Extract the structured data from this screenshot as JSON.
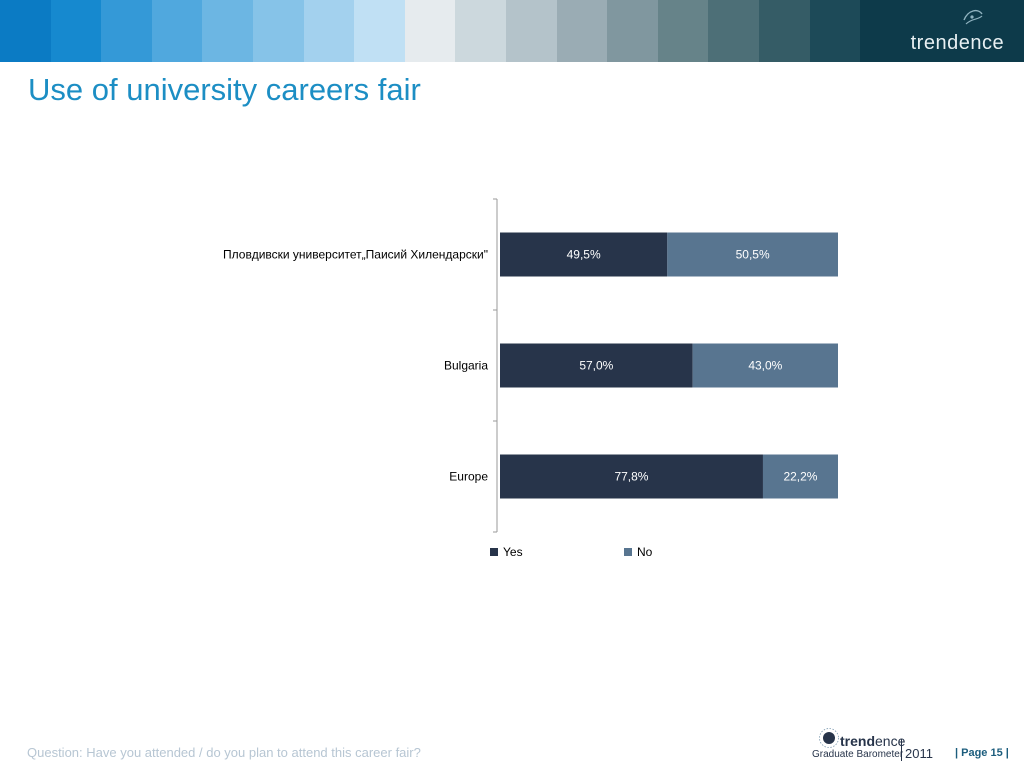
{
  "header": {
    "swatch_colors": [
      "#0b7bc4",
      "#1689cf",
      "#3499d7",
      "#50a8de",
      "#6cb6e3",
      "#86c3e8",
      "#a3d1ee",
      "#c0e0f4",
      "#e6ebee",
      "#ccd8dd",
      "#b4c3ca",
      "#9aacb4",
      "#80979f",
      "#668389",
      "#4d6f77",
      "#355c66",
      "#1d4a58"
    ],
    "logo_text": "trendence",
    "logo_icon": "swirl-logo-icon"
  },
  "slide": {
    "title": "Use of university careers fair"
  },
  "chart_data": {
    "type": "bar",
    "orientation": "horizontal",
    "stacked": true,
    "categories": [
      "Пловдивски университет„Паисий Хилендарски\"",
      "Bulgaria",
      "Europe"
    ],
    "series": [
      {
        "name": "Yes",
        "color": "#27344a",
        "values": [
          49.5,
          57.0,
          77.8
        ],
        "labels": [
          "49,5%",
          "57,0%",
          "77,8%"
        ]
      },
      {
        "name": "No",
        "color": "#587590",
        "values": [
          50.5,
          43.0,
          22.2
        ],
        "labels": [
          "50,5%",
          "43,0%",
          "22,2%"
        ]
      }
    ],
    "xlim": [
      0,
      100
    ],
    "legend_position": "bottom",
    "grid": false
  },
  "footer": {
    "question": "Question: Have you attended / do you plan to attend this career fair?",
    "brand_bold": "trend",
    "brand_light": "ence",
    "brand_sub": "Graduate Barometer",
    "year": "2011",
    "page_label": "| Page 15 |",
    "brand_icon": "globe-logo-icon"
  }
}
